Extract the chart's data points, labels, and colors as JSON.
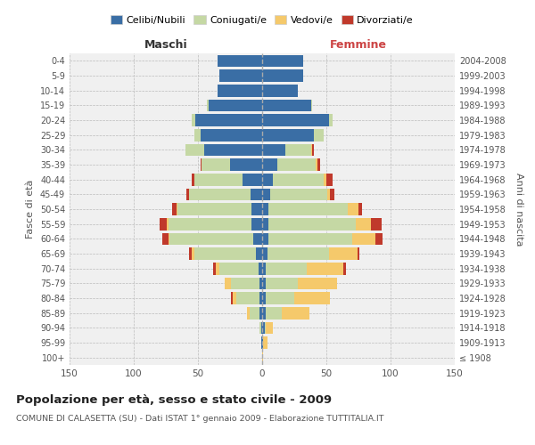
{
  "age_groups": [
    "100+",
    "95-99",
    "90-94",
    "85-89",
    "80-84",
    "75-79",
    "70-74",
    "65-69",
    "60-64",
    "55-59",
    "50-54",
    "45-49",
    "40-44",
    "35-39",
    "30-34",
    "25-29",
    "20-24",
    "15-19",
    "10-14",
    "5-9",
    "0-4"
  ],
  "birth_years": [
    "≤ 1908",
    "1909-1913",
    "1914-1918",
    "1919-1923",
    "1924-1928",
    "1929-1933",
    "1934-1938",
    "1939-1943",
    "1944-1948",
    "1949-1953",
    "1954-1958",
    "1959-1963",
    "1964-1968",
    "1969-1973",
    "1974-1978",
    "1979-1983",
    "1984-1988",
    "1989-1993",
    "1994-1998",
    "1999-2003",
    "2004-2008"
  ],
  "male": {
    "celibe": [
      0,
      1,
      1,
      2,
      2,
      2,
      3,
      5,
      7,
      8,
      8,
      9,
      15,
      25,
      45,
      48,
      52,
      42,
      35,
      33,
      35
    ],
    "coniugato": [
      0,
      0,
      1,
      8,
      18,
      22,
      30,
      48,
      65,
      65,
      58,
      48,
      38,
      22,
      15,
      5,
      3,
      1,
      0,
      0,
      0
    ],
    "vedovo": [
      0,
      0,
      0,
      2,
      3,
      5,
      3,
      2,
      1,
      1,
      1,
      0,
      0,
      0,
      0,
      0,
      0,
      0,
      0,
      0,
      0
    ],
    "divorziato": [
      0,
      0,
      0,
      0,
      1,
      0,
      2,
      2,
      5,
      6,
      3,
      2,
      2,
      1,
      0,
      0,
      0,
      0,
      0,
      0,
      0
    ]
  },
  "female": {
    "nubile": [
      0,
      1,
      2,
      3,
      3,
      3,
      3,
      4,
      5,
      5,
      5,
      6,
      8,
      12,
      18,
      40,
      52,
      38,
      28,
      32,
      32
    ],
    "coniugata": [
      0,
      0,
      1,
      12,
      22,
      25,
      32,
      48,
      65,
      68,
      62,
      45,
      40,
      30,
      20,
      8,
      3,
      1,
      0,
      0,
      0
    ],
    "vedova": [
      1,
      3,
      5,
      22,
      28,
      30,
      28,
      22,
      18,
      12,
      8,
      2,
      2,
      1,
      1,
      0,
      0,
      0,
      0,
      0,
      0
    ],
    "divorziata": [
      0,
      0,
      0,
      0,
      0,
      0,
      2,
      2,
      6,
      8,
      3,
      3,
      5,
      2,
      1,
      0,
      0,
      0,
      0,
      0,
      0
    ]
  },
  "colors": {
    "celibe": "#3a6ea5",
    "coniugato": "#c5d8a4",
    "vedovo": "#f5c96b",
    "divorziato": "#c0392b"
  },
  "title": "Popolazione per età, sesso e stato civile - 2009",
  "subtitle": "COMUNE DI CALASETTA (SU) - Dati ISTAT 1° gennaio 2009 - Elaborazione TUTTITALIA.IT",
  "xlabel_left": "Maschi",
  "xlabel_right": "Femmine",
  "ylabel_left": "Fasce di età",
  "ylabel_right": "Anni di nascita",
  "xlim": 150,
  "background_color": "#ffffff",
  "legend_labels": [
    "Celibi/Nubili",
    "Coniugati/e",
    "Vedovi/e",
    "Divorziati/e"
  ]
}
